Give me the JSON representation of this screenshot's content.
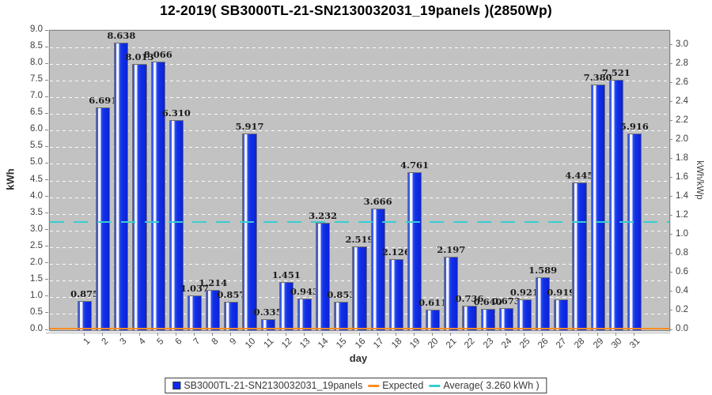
{
  "title": "12-2019( SB3000TL-21-SN2130032031_19panels )(2850Wp)",
  "chart_data": {
    "type": "bar",
    "title": "12-2019( SB3000TL-21-SN2130032031_19panels )(2850Wp)",
    "xlabel": "day",
    "ylabel_left": "kWh",
    "ylabel_right": "kWh/kWp",
    "ylim_left": [
      0.0,
      9.0
    ],
    "right_axis_kwp_factor": 2.85,
    "grid": "horizontal white dashed every 0.5 kWh",
    "legend_position": "bottom-center",
    "categories": [
      "1",
      "2",
      "3",
      "4",
      "5",
      "6",
      "7",
      "8",
      "9",
      "10",
      "11",
      "12",
      "13",
      "14",
      "15",
      "16",
      "17",
      "18",
      "19",
      "20",
      "21",
      "22",
      "23",
      "24",
      "25",
      "26",
      "27",
      "28",
      "29",
      "30",
      "31"
    ],
    "values": [
      0.875,
      6.691,
      8.638,
      8.013,
      8.066,
      6.31,
      1.037,
      1.214,
      0.857,
      5.917,
      0.335,
      1.451,
      0.943,
      3.232,
      0.853,
      2.519,
      3.666,
      2.126,
      4.761,
      0.611,
      2.197,
      0.736,
      0.64,
      0.673,
      0.921,
      1.589,
      0.919,
      4.445,
      7.38,
      7.521,
      5.916
    ],
    "value_labels": [
      "0.875",
      "6.691",
      "8.638",
      "8.013",
      "8.066",
      "6.310",
      "1.037",
      "1.214",
      "0.857",
      "5.917",
      "0.335",
      "1.451",
      "0.943",
      "3.232",
      "0.853",
      "2.519",
      "3.666",
      "2.126",
      "4.761",
      "0.611",
      "2.197",
      "0.736",
      "0.640",
      "0.673",
      "0.921",
      "1.589",
      "0.919",
      "4.445",
      "7.380",
      "7.521",
      "5.916"
    ],
    "left_tick_labels": [
      "9.0",
      "8.5",
      "8.0",
      "7.5",
      "7.0",
      "6.5",
      "6.0",
      "5.5",
      "5.0",
      "4.5",
      "4.0",
      "3.5",
      "3.0",
      "2.5",
      "2.0",
      "1.5",
      "1.0",
      "0.5",
      "0.0"
    ],
    "right_tick_labels": [
      "3.0",
      "2.8",
      "2.6",
      "2.4",
      "2.2",
      "2.0",
      "1.8",
      "1.6",
      "1.4",
      "1.2",
      "1.0",
      "0.8",
      "0.6",
      "0.4",
      "0.2",
      "0.0"
    ],
    "average_value": 3.26,
    "expected_value": 0.0,
    "series_label": "SB3000TL-21-SN2130032031_19panels",
    "expected_label": "Expected",
    "average_label": "Average( 3.260 kWh )",
    "colors": {
      "bar": "#0d2bee",
      "expected": "#ff8d1e",
      "average": "#35cfd2",
      "plot_background": "#c2c2c2",
      "gridline": "#ffffff"
    }
  }
}
